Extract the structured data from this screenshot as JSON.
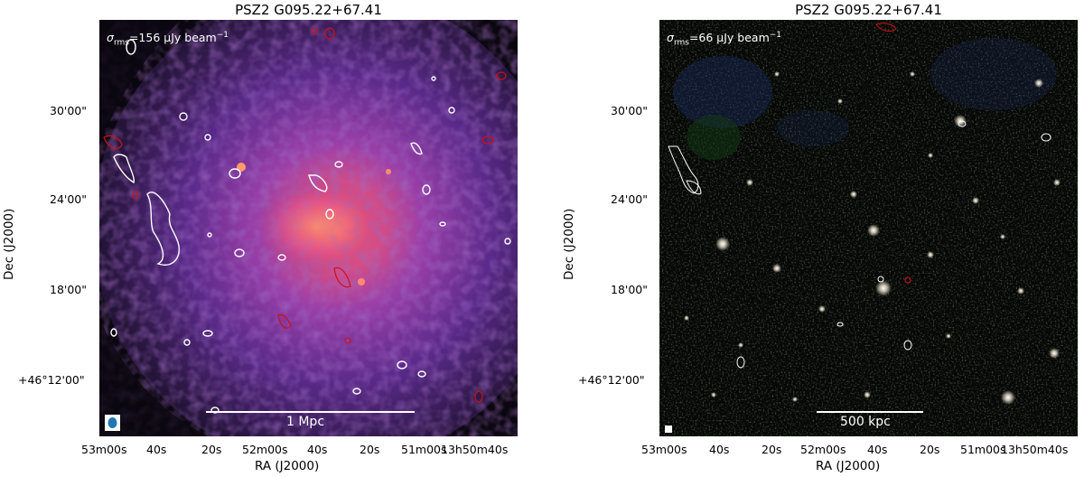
{
  "figure": {
    "panels": [
      {
        "title": "PSZ2 G095.22+67.41",
        "rms_label_sigma": "σ",
        "rms_label_sub": "rms",
        "rms_label_value": "=156 μJy beam",
        "rms_label_exp": "−1",
        "scalebar_label": "1 Mpc",
        "y_ticks": [
          "30'00\"",
          "24'00\"",
          "18'00\"",
          "+46°12'00\""
        ],
        "x_ticks": [
          "53m00s",
          "40s",
          "20s",
          "52m00s",
          "40s",
          "20s",
          "51m00s",
          "13h50m40s"
        ],
        "xlabel": "RA (J2000)",
        "ylabel": "Dec (J2000)",
        "colors": {
          "background": "#0b0710",
          "contour_white": "#ffffff",
          "contour_red": "#d01010",
          "beam": "#1f77b4"
        }
      },
      {
        "title": "PSZ2 G095.22+67.41",
        "rms_label_sigma": "σ",
        "rms_label_sub": "rms",
        "rms_label_value": "=66 μJy beam",
        "rms_label_exp": "−1",
        "scalebar_label": "500 kpc",
        "y_ticks": [
          "30'00\"",
          "24'00\"",
          "18'00\"",
          "+46°12'00\""
        ],
        "x_ticks": [
          "53m00s",
          "40s",
          "20s",
          "52m00s",
          "40s",
          "20s",
          "51m00s",
          "13h50m40s"
        ],
        "xlabel": "RA (J2000)",
        "ylabel": "Dec (J2000)",
        "colors": {
          "background": "#050805",
          "contour_white": "#ffffff",
          "contour_red": "#d01010"
        }
      }
    ]
  }
}
